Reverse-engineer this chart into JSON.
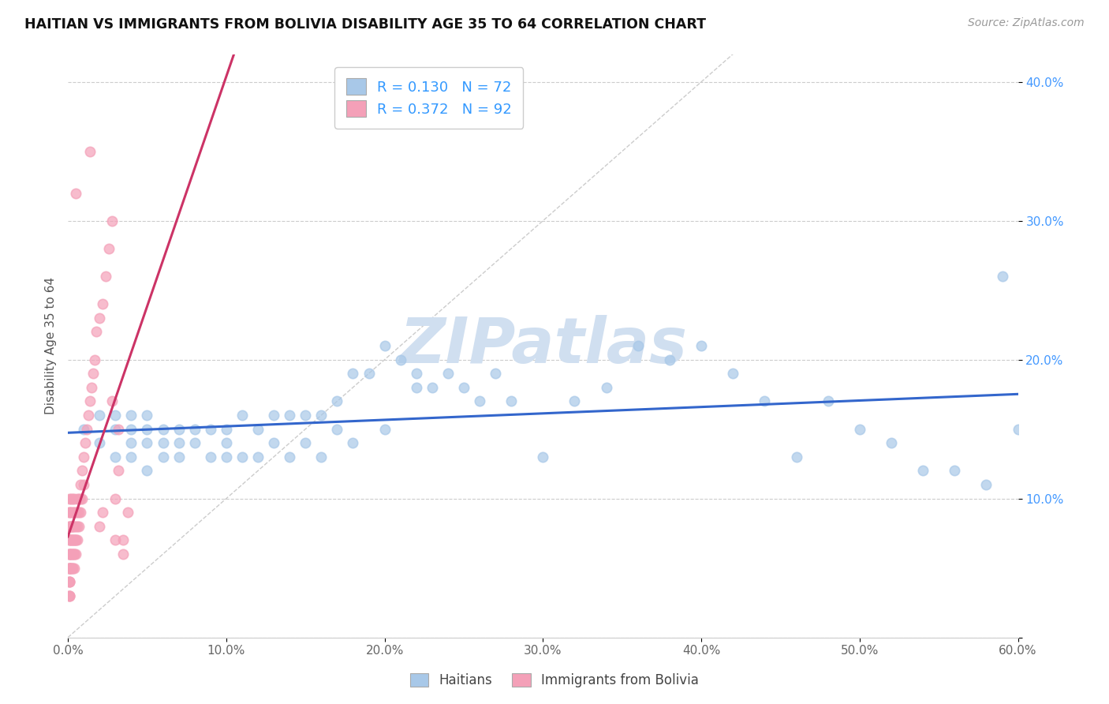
{
  "title": "HAITIAN VS IMMIGRANTS FROM BOLIVIA DISABILITY AGE 35 TO 64 CORRELATION CHART",
  "source_text": "Source: ZipAtlas.com",
  "ylabel": "Disability Age 35 to 64",
  "xlim": [
    0.0,
    0.6
  ],
  "ylim": [
    0.0,
    0.42
  ],
  "xticks": [
    0.0,
    0.1,
    0.2,
    0.3,
    0.4,
    0.5,
    0.6
  ],
  "yticks": [
    0.0,
    0.1,
    0.2,
    0.3,
    0.4
  ],
  "xticklabels": [
    "0.0%",
    "10.0%",
    "20.0%",
    "30.0%",
    "40.0%",
    "50.0%",
    "60.0%"
  ],
  "yticklabels": [
    "",
    "10.0%",
    "20.0%",
    "30.0%",
    "40.0%"
  ],
  "legend_blue_label": "Haitians",
  "legend_pink_label": "Immigrants from Bolivia",
  "r_blue": 0.13,
  "n_blue": 72,
  "r_pink": 0.372,
  "n_pink": 92,
  "blue_color": "#a8c8e8",
  "pink_color": "#f4a0b8",
  "blue_line_color": "#3366cc",
  "pink_line_color": "#cc3366",
  "watermark_color": "#d0dff0",
  "background_color": "#ffffff",
  "grid_color": "#cccccc",
  "blue_scatter_x": [
    0.01,
    0.02,
    0.02,
    0.03,
    0.03,
    0.03,
    0.04,
    0.04,
    0.04,
    0.04,
    0.05,
    0.05,
    0.05,
    0.05,
    0.06,
    0.06,
    0.06,
    0.07,
    0.07,
    0.07,
    0.08,
    0.08,
    0.09,
    0.09,
    0.1,
    0.1,
    0.1,
    0.11,
    0.11,
    0.12,
    0.12,
    0.13,
    0.13,
    0.14,
    0.14,
    0.15,
    0.15,
    0.16,
    0.16,
    0.17,
    0.17,
    0.18,
    0.18,
    0.19,
    0.2,
    0.2,
    0.21,
    0.22,
    0.22,
    0.23,
    0.24,
    0.25,
    0.26,
    0.27,
    0.28,
    0.3,
    0.32,
    0.34,
    0.36,
    0.38,
    0.4,
    0.42,
    0.44,
    0.46,
    0.48,
    0.5,
    0.52,
    0.54,
    0.56,
    0.58,
    0.59,
    0.6
  ],
  "blue_scatter_y": [
    0.15,
    0.16,
    0.14,
    0.16,
    0.15,
    0.13,
    0.16,
    0.15,
    0.14,
    0.13,
    0.16,
    0.15,
    0.14,
    0.12,
    0.15,
    0.14,
    0.13,
    0.15,
    0.14,
    0.13,
    0.15,
    0.14,
    0.15,
    0.13,
    0.15,
    0.14,
    0.13,
    0.16,
    0.13,
    0.15,
    0.13,
    0.16,
    0.14,
    0.16,
    0.13,
    0.16,
    0.14,
    0.16,
    0.13,
    0.17,
    0.15,
    0.19,
    0.14,
    0.19,
    0.21,
    0.15,
    0.2,
    0.19,
    0.18,
    0.18,
    0.19,
    0.18,
    0.17,
    0.19,
    0.17,
    0.13,
    0.17,
    0.18,
    0.21,
    0.2,
    0.21,
    0.19,
    0.17,
    0.13,
    0.17,
    0.15,
    0.14,
    0.12,
    0.12,
    0.11,
    0.26,
    0.15
  ],
  "pink_scatter_x": [
    0.001,
    0.001,
    0.001,
    0.001,
    0.001,
    0.001,
    0.001,
    0.001,
    0.001,
    0.001,
    0.001,
    0.001,
    0.001,
    0.001,
    0.001,
    0.001,
    0.001,
    0.001,
    0.001,
    0.001,
    0.002,
    0.002,
    0.002,
    0.002,
    0.002,
    0.002,
    0.002,
    0.002,
    0.002,
    0.002,
    0.003,
    0.003,
    0.003,
    0.003,
    0.003,
    0.003,
    0.003,
    0.003,
    0.003,
    0.003,
    0.004,
    0.004,
    0.004,
    0.004,
    0.004,
    0.004,
    0.004,
    0.004,
    0.005,
    0.005,
    0.005,
    0.005,
    0.005,
    0.006,
    0.006,
    0.006,
    0.006,
    0.007,
    0.007,
    0.007,
    0.008,
    0.008,
    0.008,
    0.009,
    0.009,
    0.01,
    0.01,
    0.011,
    0.012,
    0.013,
    0.014,
    0.015,
    0.016,
    0.017,
    0.018,
    0.02,
    0.022,
    0.024,
    0.026,
    0.028,
    0.03,
    0.032,
    0.035,
    0.038,
    0.02,
    0.022,
    0.005,
    0.014,
    0.028,
    0.032,
    0.03,
    0.035
  ],
  "pink_scatter_y": [
    0.05,
    0.05,
    0.05,
    0.05,
    0.04,
    0.04,
    0.04,
    0.03,
    0.03,
    0.03,
    0.06,
    0.06,
    0.06,
    0.07,
    0.07,
    0.08,
    0.08,
    0.09,
    0.09,
    0.1,
    0.05,
    0.05,
    0.06,
    0.06,
    0.07,
    0.07,
    0.08,
    0.08,
    0.09,
    0.1,
    0.05,
    0.05,
    0.06,
    0.06,
    0.07,
    0.07,
    0.08,
    0.08,
    0.09,
    0.1,
    0.05,
    0.06,
    0.06,
    0.07,
    0.07,
    0.08,
    0.09,
    0.1,
    0.06,
    0.07,
    0.07,
    0.08,
    0.09,
    0.07,
    0.08,
    0.09,
    0.1,
    0.08,
    0.09,
    0.1,
    0.09,
    0.1,
    0.11,
    0.1,
    0.12,
    0.11,
    0.13,
    0.14,
    0.15,
    0.16,
    0.17,
    0.18,
    0.19,
    0.2,
    0.22,
    0.23,
    0.24,
    0.26,
    0.28,
    0.3,
    0.1,
    0.12,
    0.07,
    0.09,
    0.08,
    0.09,
    0.32,
    0.35,
    0.17,
    0.15,
    0.07,
    0.06
  ]
}
